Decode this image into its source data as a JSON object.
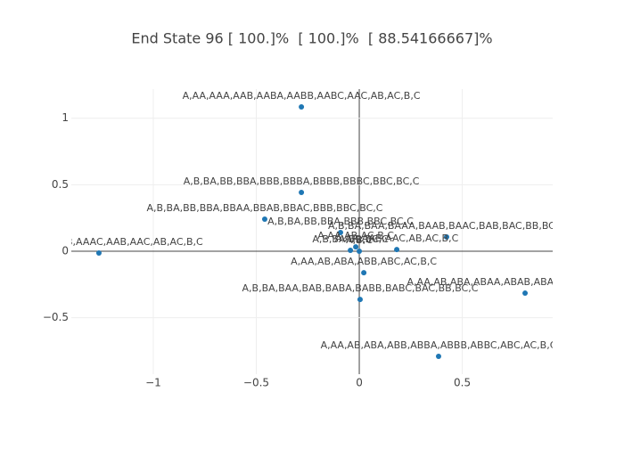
{
  "chart_data": {
    "type": "scatter",
    "title": "End State 96 [ 100.]%  [ 100.]%  [ 88.54166667]%",
    "color": "#1f77b4",
    "grid": true,
    "xlim": [
      -1.398,
      0.939
    ],
    "ylim": [
      -0.924,
      1.219
    ],
    "xticks": [
      {
        "value": -1,
        "label": "−1"
      },
      {
        "value": -0.5,
        "label": "−0.5"
      },
      0,
      0.5
    ],
    "yticks": [
      {
        "value": -0.5,
        "label": "−0.5"
      },
      0,
      0.5,
      1
    ],
    "x": [
      -0.281,
      -0.281,
      -0.459,
      -0.091,
      0.424,
      -1.264,
      0.182,
      0.022,
      0.004,
      0.805,
      0.385,
      -0.043,
      -0.017,
      0
    ],
    "y": [
      1.085,
      0.442,
      0.241,
      0.141,
      0.107,
      -0.013,
      0.013,
      -0.161,
      -0.362,
      -0.315,
      -0.79,
      0.007,
      0.033,
      0
    ],
    "text": [
      "A,AA,AAA,AAB,AABA,AABB,AABC,AAC,AB,AC,B,C",
      "A,B,BA,BB,BBA,BBB,BBBA,BBBB,BBBC,BBC,BC,C",
      "A,B,BA,BB,BBA,BBAA,BBAB,BBAC,BBB,BBC,BC,C",
      "A,B,BA,BB,BBA,BBB,BBC,BC,C",
      "A,B,BA,BAA,BAAA,BAAB,BAAC,BAB,BAC,BB,BC,C",
      "A,AA,AAA,AAAB,AAAC,AAB,AAC,AB,AC,B,C",
      "A,AA,AAB,AAC,AB,AC,B,C",
      "A,AA,AB,ABA,ABB,ABC,AC,B,C",
      "A,B,BA,BAA,BAB,BABA,BABB,BABC,BAC,BB,BC,C",
      "A,AA,AB,ABA,ABAA,ABAB,ABAC,ABB,ABC,AC,B,C",
      "A,AA,AB,ABA,ABB,ABBA,ABBB,ABBC,ABC,AC,B,C",
      "A,B,BA,BB,BC,C",
      "A,AA,AB,AC,B,C",
      "A,B,C"
    ]
  }
}
